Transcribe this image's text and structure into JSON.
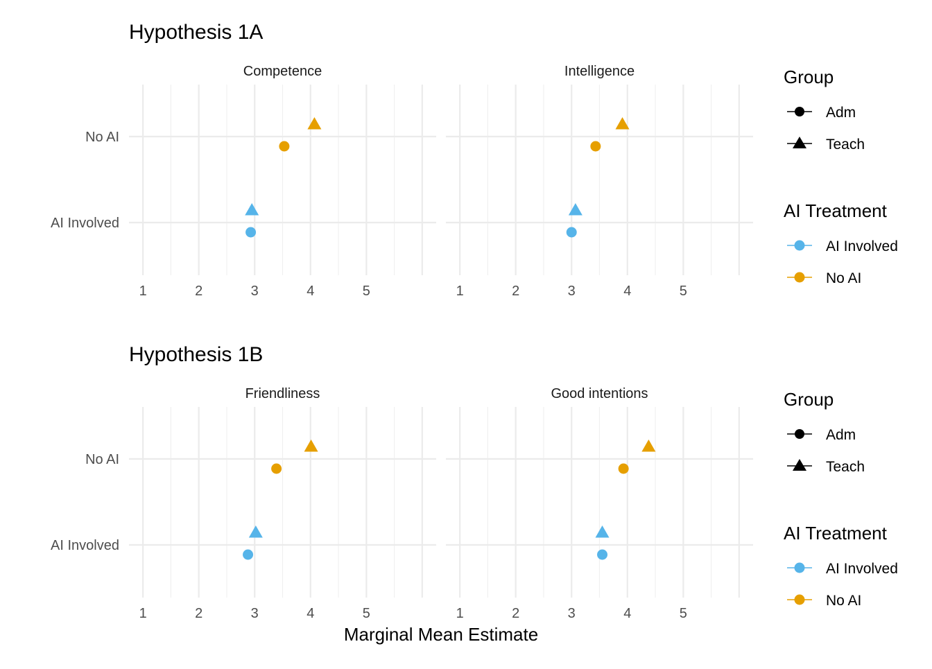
{
  "chart_data": {
    "type": "scatter",
    "xlabel": "Marginal Mean Estimate",
    "x_ticks": [
      1,
      2,
      3,
      4,
      5
    ],
    "y_categories": [
      "No AI",
      "AI Involved"
    ],
    "grid": true,
    "legend_placement": "right",
    "panels": [
      {
        "title": "Hypothesis 1A",
        "facets": [
          {
            "label": "Competence",
            "points": [
              {
                "treatment": "No AI",
                "group": "Teach",
                "x": 4.07
              },
              {
                "treatment": "No AI",
                "group": "Adm",
                "x": 3.53
              },
              {
                "treatment": "AI Involved",
                "group": "Teach",
                "x": 2.95
              },
              {
                "treatment": "AI Involved",
                "group": "Adm",
                "x": 2.93
              }
            ]
          },
          {
            "label": "Intelligence",
            "points": [
              {
                "treatment": "No AI",
                "group": "Teach",
                "x": 3.91
              },
              {
                "treatment": "No AI",
                "group": "Adm",
                "x": 3.43
              },
              {
                "treatment": "AI Involved",
                "group": "Teach",
                "x": 3.07
              },
              {
                "treatment": "AI Involved",
                "group": "Adm",
                "x": 3.0
              }
            ]
          }
        ],
        "legend": {
          "group_title": "Group",
          "group_items": [
            {
              "label": "Adm",
              "shape": "circle"
            },
            {
              "label": "Teach",
              "shape": "triangle"
            }
          ],
          "treatment_title": "AI Treatment",
          "treatment_items": [
            {
              "label": "AI Involved",
              "color": "#56B4E9"
            },
            {
              "label": "No AI",
              "color": "#E69F00"
            }
          ]
        }
      },
      {
        "title": "Hypothesis 1B",
        "facets": [
          {
            "label": "Friendliness",
            "points": [
              {
                "treatment": "No AI",
                "group": "Teach",
                "x": 4.01
              },
              {
                "treatment": "No AI",
                "group": "Adm",
                "x": 3.39
              },
              {
                "treatment": "AI Involved",
                "group": "Teach",
                "x": 3.02
              },
              {
                "treatment": "AI Involved",
                "group": "Adm",
                "x": 2.88
              }
            ]
          },
          {
            "label": "Good intentions",
            "points": [
              {
                "treatment": "No AI",
                "group": "Teach",
                "x": 4.38
              },
              {
                "treatment": "No AI",
                "group": "Adm",
                "x": 3.93
              },
              {
                "treatment": "AI Involved",
                "group": "Teach",
                "x": 3.55
              },
              {
                "treatment": "AI Involved",
                "group": "Adm",
                "x": 3.55
              }
            ]
          }
        ],
        "legend": {
          "group_title": "Group",
          "group_items": [
            {
              "label": "Adm",
              "shape": "circle"
            },
            {
              "label": "Teach",
              "shape": "triangle"
            }
          ],
          "treatment_title": "AI Treatment",
          "treatment_items": [
            {
              "label": "AI Involved",
              "color": "#56B4E9"
            },
            {
              "label": "No AI",
              "color": "#E69F00"
            }
          ]
        }
      }
    ]
  }
}
